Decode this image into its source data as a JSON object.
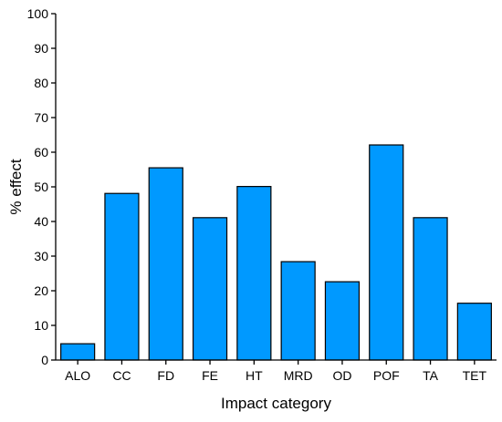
{
  "chart_data": {
    "type": "bar",
    "title": "",
    "xlabel": "Impact category",
    "ylabel": "% effect",
    "categories": [
      "ALO",
      "CC",
      "FD",
      "FE",
      "HT",
      "MRD",
      "OD",
      "POF",
      "TA",
      "TET"
    ],
    "values": [
      4.7,
      48.1,
      55.5,
      41.1,
      50.1,
      28.4,
      22.6,
      62.1,
      41.1,
      16.4
    ],
    "ylim": [
      0,
      100
    ],
    "yticks": [
      0,
      10,
      20,
      30,
      40,
      50,
      60,
      70,
      80,
      90,
      100
    ],
    "grid": false,
    "legend": "none",
    "bar_color": "#0099ff",
    "bar_edge_color": "#000000"
  }
}
